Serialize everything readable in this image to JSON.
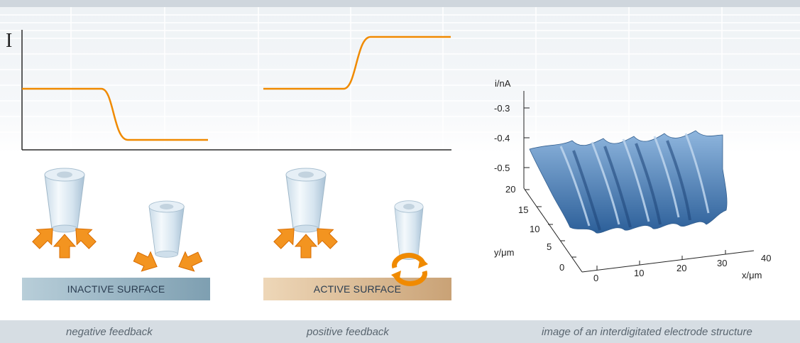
{
  "current_axis_label": "I",
  "panels": [
    {
      "surface_label": "INACTIVE SURFACE",
      "caption": "negative feedback"
    },
    {
      "surface_label": "ACTIVE SURFACE",
      "caption": "positive feedback"
    },
    {
      "caption": "image of an interdigitated electrode structure"
    }
  ],
  "plot3d": {
    "z_label": "i/nA",
    "z_ticks": [
      "-0.3",
      "-0.4",
      "-0.5"
    ],
    "y_label": "y/μm",
    "y_ticks": [
      "20",
      "15",
      "10",
      "5",
      "0"
    ],
    "x_label": "x/μm",
    "x_ticks": [
      "0",
      "10",
      "20",
      "30",
      "40"
    ]
  },
  "colors": {
    "curve": "#f08a00",
    "arrow": "#f39420",
    "inactive_surface": "#9fbccb",
    "active_surface": "#e7c9a2",
    "surface_plot": "#4f86c0"
  }
}
